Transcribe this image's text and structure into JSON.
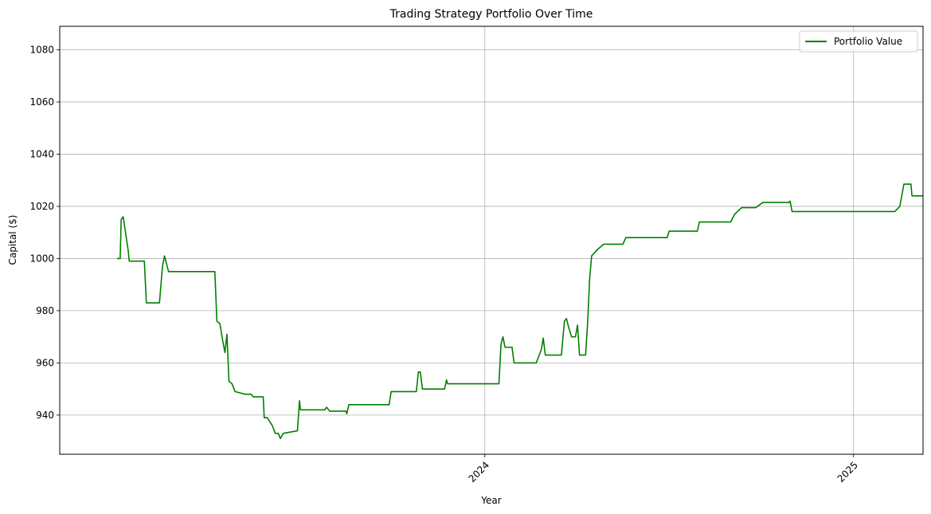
{
  "chart_data": {
    "type": "line",
    "title": "Trading Strategy Portfolio Over Time",
    "xlabel": "Year",
    "ylabel": "Capital ($)",
    "x_tick_labels": [
      "2024",
      "2025"
    ],
    "x_tick_values": [
      "2024-01-01",
      "2025-01-01"
    ],
    "xlim": [
      "2022-11-05",
      "2025-03-11"
    ],
    "ylim": [
      925,
      1089
    ],
    "y_ticks": [
      940,
      960,
      980,
      1000,
      1020,
      1040,
      1060,
      1080
    ],
    "grid": true,
    "legend_position": "top-right",
    "series": [
      {
        "name": "Portfolio Value",
        "color": "#008000",
        "points": [
          [
            "2023-01-01",
            1000
          ],
          [
            "2023-01-04",
            1000
          ],
          [
            "2023-01-05",
            1015
          ],
          [
            "2023-01-07",
            1016
          ],
          [
            "2023-01-12",
            1003
          ],
          [
            "2023-01-13",
            999
          ],
          [
            "2023-01-28",
            999
          ],
          [
            "2023-01-30",
            983
          ],
          [
            "2023-02-12",
            983
          ],
          [
            "2023-02-15",
            997
          ],
          [
            "2023-02-17",
            1001
          ],
          [
            "2023-02-21",
            995
          ],
          [
            "2023-04-08",
            995
          ],
          [
            "2023-04-10",
            976
          ],
          [
            "2023-04-13",
            975
          ],
          [
            "2023-04-16",
            968
          ],
          [
            "2023-04-18",
            964
          ],
          [
            "2023-04-20",
            971
          ],
          [
            "2023-04-22",
            953
          ],
          [
            "2023-04-25",
            952
          ],
          [
            "2023-04-28",
            949
          ],
          [
            "2023-05-08",
            948
          ],
          [
            "2023-05-14",
            948
          ],
          [
            "2023-05-16",
            947
          ],
          [
            "2023-05-26",
            947
          ],
          [
            "2023-05-27",
            939
          ],
          [
            "2023-05-30",
            939
          ],
          [
            "2023-06-04",
            936
          ],
          [
            "2023-06-07",
            933
          ],
          [
            "2023-06-10",
            933
          ],
          [
            "2023-06-12",
            931
          ],
          [
            "2023-06-15",
            933
          ],
          [
            "2023-06-29",
            934
          ],
          [
            "2023-07-01",
            945.5
          ],
          [
            "2023-07-02",
            942
          ],
          [
            "2023-07-26",
            942
          ],
          [
            "2023-07-28",
            943
          ],
          [
            "2023-07-31",
            941.5
          ],
          [
            "2023-08-16",
            941.5
          ],
          [
            "2023-08-17",
            940.5
          ],
          [
            "2023-08-19",
            944
          ],
          [
            "2023-09-28",
            944
          ],
          [
            "2023-09-30",
            949
          ],
          [
            "2023-10-25",
            949
          ],
          [
            "2023-10-27",
            956.5
          ],
          [
            "2023-10-29",
            956.5
          ],
          [
            "2023-10-31",
            950
          ],
          [
            "2023-11-22",
            950
          ],
          [
            "2023-11-24",
            953.5
          ],
          [
            "2023-11-25",
            952
          ],
          [
            "2024-01-15",
            952
          ],
          [
            "2024-01-17",
            967
          ],
          [
            "2024-01-19",
            970
          ],
          [
            "2024-01-21",
            966
          ],
          [
            "2024-01-28",
            966
          ],
          [
            "2024-01-30",
            960
          ],
          [
            "2024-02-21",
            960
          ],
          [
            "2024-02-26",
            965
          ],
          [
            "2024-02-28",
            969.5
          ],
          [
            "2024-03-01",
            963
          ],
          [
            "2024-03-17",
            963
          ],
          [
            "2024-03-20",
            976
          ],
          [
            "2024-03-22",
            977
          ],
          [
            "2024-03-24",
            974
          ],
          [
            "2024-03-27",
            970
          ],
          [
            "2024-03-31",
            970
          ],
          [
            "2024-04-02",
            974.5
          ],
          [
            "2024-04-04",
            963
          ],
          [
            "2024-04-10",
            963
          ],
          [
            "2024-04-12",
            975
          ],
          [
            "2024-04-14",
            992
          ],
          [
            "2024-04-16",
            1001
          ],
          [
            "2024-04-22",
            1003.5
          ],
          [
            "2024-04-28",
            1005.5
          ],
          [
            "2024-05-17",
            1005.5
          ],
          [
            "2024-05-20",
            1008
          ],
          [
            "2024-06-30",
            1008
          ],
          [
            "2024-07-02",
            1010.5
          ],
          [
            "2024-07-30",
            1010.5
          ],
          [
            "2024-08-01",
            1014
          ],
          [
            "2024-09-01",
            1014
          ],
          [
            "2024-09-05",
            1017
          ],
          [
            "2024-09-12",
            1019.5
          ],
          [
            "2024-09-26",
            1019.5
          ],
          [
            "2024-10-03",
            1021.5
          ],
          [
            "2024-10-29",
            1021.5
          ],
          [
            "2024-10-30",
            1022
          ],
          [
            "2024-11-01",
            1018
          ],
          [
            "2025-02-11",
            1018
          ],
          [
            "2025-02-16",
            1020
          ],
          [
            "2025-02-20",
            1028.5
          ],
          [
            "2025-02-27",
            1028.5
          ],
          [
            "2025-02-28",
            1024
          ],
          [
            "2025-03-11",
            1024
          ]
        ]
      }
    ]
  }
}
